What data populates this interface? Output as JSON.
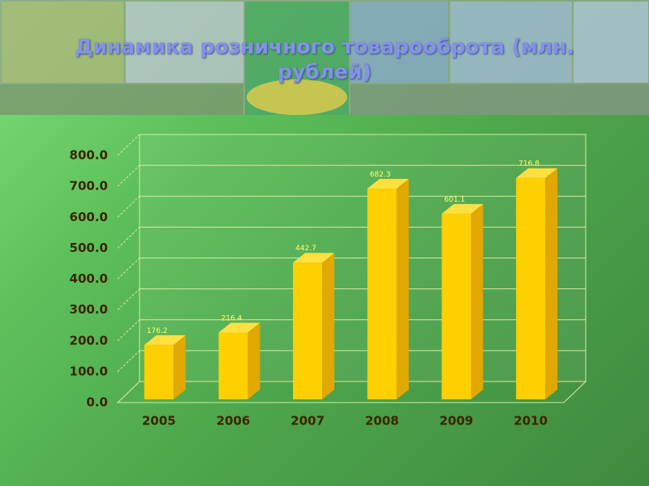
{
  "chart_data": {
    "type": "bar3d",
    "title": "Динамика  розничного товарооброта (млн. рублей)",
    "categories": [
      "2005",
      "2006",
      "2007",
      "2008",
      "2009",
      "2010"
    ],
    "values": [
      176.2,
      216.4,
      442.7,
      682.3,
      601.1,
      716.8
    ],
    "color": "#ffd000",
    "ylim": [
      0,
      800
    ],
    "yticks": [
      {
        "value": 0,
        "label": "0.0"
      },
      {
        "value": 100,
        "label": "100.0"
      },
      {
        "value": 200,
        "label": "200.0"
      },
      {
        "value": 300,
        "label": "300.0"
      },
      {
        "value": 400,
        "label": "400.0"
      },
      {
        "value": 500,
        "label": "500.0"
      },
      {
        "value": 600,
        "label": "600.0"
      },
      {
        "value": 700,
        "label": "700.0"
      },
      {
        "value": 800,
        "label": "800.0"
      }
    ],
    "grid": true
  }
}
